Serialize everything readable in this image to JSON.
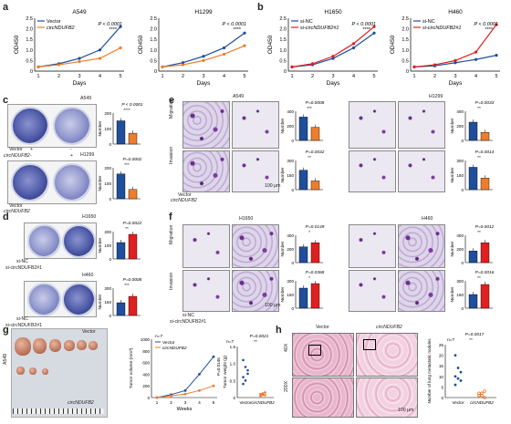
{
  "panels": {
    "a": "a",
    "b": "b",
    "c": "c",
    "d": "d",
    "e": "e",
    "f": "f",
    "g": "g",
    "h": "h"
  },
  "colors": {
    "vector": "#1f4e9c",
    "circ": "#ee7d2a",
    "sinc": "#1f4e9c",
    "si": "#e02020"
  },
  "lines": {
    "a_a549": {
      "title": "A549",
      "ylabel": "OD450",
      "xlabel": "Days",
      "p": "P < 0.0001",
      "stars": "****",
      "legend": [
        "Vector",
        "circNDUFB2"
      ],
      "ylim": [
        0,
        2.5
      ],
      "yticks": [
        "0",
        "0.5",
        "1.0",
        "1.5",
        "2.0",
        "2.5"
      ],
      "xticks": [
        "1",
        "2",
        "3",
        "4",
        "5"
      ],
      "series": [
        {
          "name": "Vector",
          "values": [
            0.2,
            0.35,
            0.6,
            1.0,
            2.1
          ]
        },
        {
          "name": "circNDUFB2",
          "values": [
            0.2,
            0.3,
            0.45,
            0.6,
            1.1
          ]
        }
      ]
    },
    "a_h1299": {
      "title": "H1299",
      "ylabel": "OD450",
      "xlabel": "Days",
      "p": "P < 0.0001",
      "stars": "****",
      "ylim": [
        0,
        2.5
      ],
      "yticks": [
        "0",
        "0.5",
        "1.0",
        "1.5",
        "2.0",
        "2.5"
      ],
      "xticks": [
        "1",
        "2",
        "3",
        "4",
        "5"
      ],
      "series": [
        {
          "name": "Vector",
          "values": [
            0.2,
            0.4,
            0.7,
            1.1,
            1.8
          ]
        },
        {
          "name": "circNDUFB2",
          "values": [
            0.2,
            0.3,
            0.5,
            0.8,
            1.2
          ]
        }
      ]
    },
    "b_h1650": {
      "title": "H1650",
      "ylabel": "OD450",
      "xlabel": "Days",
      "p": "P < 0.0001",
      "stars": "****",
      "legend": [
        "si-NC",
        "si-circNDUFB2#1"
      ],
      "ylim": [
        0,
        2.5
      ],
      "yticks": [
        "0",
        "0.5",
        "1.0",
        "1.5",
        "2.0",
        "2.5"
      ],
      "xticks": [
        "1",
        "2",
        "3",
        "4",
        "5"
      ],
      "series": [
        {
          "name": "si-NC",
          "values": [
            0.2,
            0.3,
            0.6,
            1.1,
            1.8
          ]
        },
        {
          "name": "si-circNDUFB2#1",
          "values": [
            0.2,
            0.35,
            0.7,
            1.3,
            2.1
          ]
        }
      ]
    },
    "b_h460": {
      "title": "H460",
      "ylabel": "OD450",
      "xlabel": "Days",
      "p": "P < 0.0001",
      "stars": "****",
      "legend": [
        "si-NC",
        "si-circNDUFB2#1"
      ],
      "ylim": [
        0,
        2.5
      ],
      "yticks": [
        "0",
        "0.5",
        "1.0",
        "1.5",
        "2.0",
        "2.5"
      ],
      "xticks": [
        "1",
        "2",
        "3",
        "4",
        "5"
      ],
      "series": [
        {
          "name": "si-NC",
          "values": [
            0.2,
            0.25,
            0.4,
            0.55,
            0.75
          ]
        },
        {
          "name": "si-circNDUFB2#1",
          "values": [
            0.2,
            0.3,
            0.5,
            0.9,
            2.2
          ]
        }
      ]
    }
  },
  "c": {
    "a549": "A549",
    "h1299": "H1299",
    "p1": "P < 0.0001",
    "s1": "****",
    "p2": "P=0.0002",
    "s2": "***",
    "row1": "Vector",
    "row2": "circNDUFB2",
    "plus": "+",
    "minus": "-",
    "ylabel": "Number",
    "yt1": [
      "0",
      "100",
      "200"
    ],
    "yt2": [
      "0",
      "100",
      "200"
    ],
    "bars1": [
      150,
      70
    ],
    "bars2": [
      160,
      60
    ]
  },
  "d": {
    "h1650": "H1650",
    "h460": "H460",
    "p1": "P=0.0022",
    "s1": "**",
    "p2": "P=0.0008",
    "s2": "***",
    "row1": "si-NC",
    "row2": "si-circNDUFB2#1",
    "ylabel": "Number",
    "bars1": [
      120,
      180
    ],
    "bars2": [
      140,
      210
    ]
  },
  "e": {
    "a549": "A549",
    "h1299": "H1299",
    "migration": "Migration",
    "invasion": "Invasion",
    "p1": "P=0.0008",
    "s1": "***",
    "p2": "P=0.0032",
    "s2": "**",
    "p3": "P=0.0033",
    "s3": "**",
    "p4": "P=0.0014",
    "s4": "**",
    "row1": "Vector",
    "row2": "circNDUFB2",
    "ylabel": "Number",
    "scale": "100 μm",
    "b1": [
      320,
      180
    ],
    "b2": [
      200,
      90
    ],
    "b3": [
      250,
      110
    ],
    "b4": [
      230,
      120
    ]
  },
  "f": {
    "h1650": "H1650",
    "h460": "H460",
    "migration": "Migration",
    "invasion": "Invasion",
    "p1": "P=0.0149",
    "s1": "*",
    "p2": "P=0.0368",
    "s2": "*",
    "p3": "P=0.0012",
    "s3": "**",
    "p4": "P=0.0016",
    "s4": "**",
    "row1": "si-NC",
    "row2": "si-circNDUFB2#1",
    "ylabel": "Number",
    "scale": "100 μm",
    "b1": [
      230,
      290
    ],
    "b2": [
      220,
      270
    ],
    "b3": [
      170,
      290
    ],
    "b4": [
      150,
      260
    ]
  },
  "g": {
    "side": "A549",
    "vec": "Vector",
    "circ": "circNDUFB2",
    "n": "n=7",
    "ylabel": "Tumor volume (mm³)",
    "xlabel": "Weeks",
    "p": "P=0.0146",
    "ptw": "P=0.0021",
    "stw": "**",
    "ylabel2": "Tumor weight (g)",
    "legend": [
      "Vector",
      "circNDUFB2"
    ],
    "xt": [
      "1",
      "2",
      "3",
      "4",
      "5"
    ],
    "yt": [
      "0",
      "200",
      "400",
      "600",
      "800",
      "1000"
    ],
    "vals_vec": [
      0,
      50,
      120,
      400,
      700
    ],
    "vals_circ": [
      0,
      30,
      60,
      120,
      200
    ],
    "yt2": [
      "0",
      "0.5",
      "1.0",
      "1.5"
    ],
    "xcats": [
      "Vector",
      "circNDUFB2"
    ]
  },
  "h": {
    "vec": "Vector",
    "circ": "circNDUFB2",
    "m40": "40X",
    "m200": "200X",
    "n": "n=7",
    "p": "P=0.0017",
    "s": "**",
    "ylabel": "Number of lung metastatic nodules",
    "yt": [
      "0",
      "5",
      "10",
      "15",
      "20",
      "25"
    ],
    "xcats": [
      "Vector",
      "circNDUFB2"
    ],
    "scale": "100 μm"
  }
}
